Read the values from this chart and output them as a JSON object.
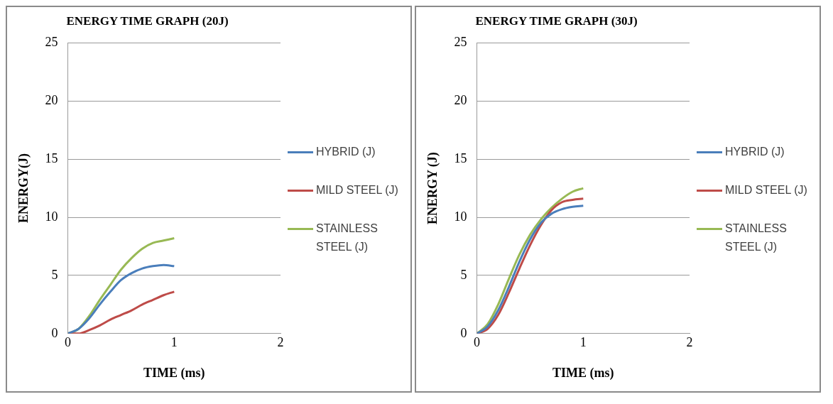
{
  "chart_data": [
    {
      "type": "line",
      "title": "ENERGY TIME GRAPH (20J)",
      "xlabel": "TIME (ms)",
      "ylabel": "ENERGY(J)",
      "x": [
        0,
        0.1,
        0.2,
        0.3,
        0.4,
        0.5,
        0.6,
        0.7,
        0.8,
        0.9,
        1
      ],
      "xlim": [
        0,
        2
      ],
      "xticks": [
        0,
        1,
        2
      ],
      "ylim": [
        0,
        25
      ],
      "yticks": [
        0,
        5,
        10,
        15,
        20,
        25
      ],
      "grid": "y",
      "legend": "right",
      "marker": "none",
      "line_style": "solid",
      "series": [
        {
          "name": "HYBRID (J)",
          "color": "#4a7ebb",
          "values": [
            0,
            0.4,
            1.3,
            2.5,
            3.6,
            4.6,
            5.2,
            5.6,
            5.8,
            5.9,
            5.8
          ]
        },
        {
          "name": "MILD STEEL (J)",
          "color": "#be4b48",
          "values": [
            0,
            0,
            0.3,
            0.7,
            1.2,
            1.6,
            2.0,
            2.5,
            2.9,
            3.3,
            3.6
          ]
        },
        {
          "name": "STAINLESS STEEL (J)",
          "color": "#98b954",
          "values": [
            0,
            0.4,
            1.5,
            2.9,
            4.2,
            5.5,
            6.5,
            7.3,
            7.8,
            8.0,
            8.2
          ]
        }
      ]
    },
    {
      "type": "line",
      "title": "ENERGY TIME GRAPH (30J)",
      "xlabel": "TIME (ms)",
      "ylabel": "ENERGY (J)",
      "x": [
        0,
        0.1,
        0.2,
        0.3,
        0.4,
        0.5,
        0.6,
        0.7,
        0.8,
        0.9,
        1
      ],
      "xlim": [
        0,
        2
      ],
      "xticks": [
        0,
        1,
        2
      ],
      "ylim": [
        0,
        25
      ],
      "yticks": [
        0,
        5,
        10,
        15,
        20,
        25
      ],
      "grid": "y",
      "legend": "right",
      "marker": "none",
      "line_style": "solid",
      "series": [
        {
          "name": "HYBRID (J)",
          "color": "#4a7ebb",
          "values": [
            0,
            0.6,
            2.0,
            4.0,
            6.2,
            8.1,
            9.5,
            10.3,
            10.7,
            10.9,
            11.0
          ]
        },
        {
          "name": "MILD STEEL (J)",
          "color": "#be4b48",
          "values": [
            0,
            0.4,
            1.6,
            3.5,
            5.6,
            7.6,
            9.3,
            10.6,
            11.3,
            11.5,
            11.6
          ]
        },
        {
          "name": "STAINLESS STEEL (J)",
          "color": "#98b954",
          "values": [
            0,
            0.8,
            2.5,
            4.7,
            6.8,
            8.5,
            9.8,
            10.8,
            11.6,
            12.2,
            12.5
          ]
        }
      ]
    }
  ]
}
